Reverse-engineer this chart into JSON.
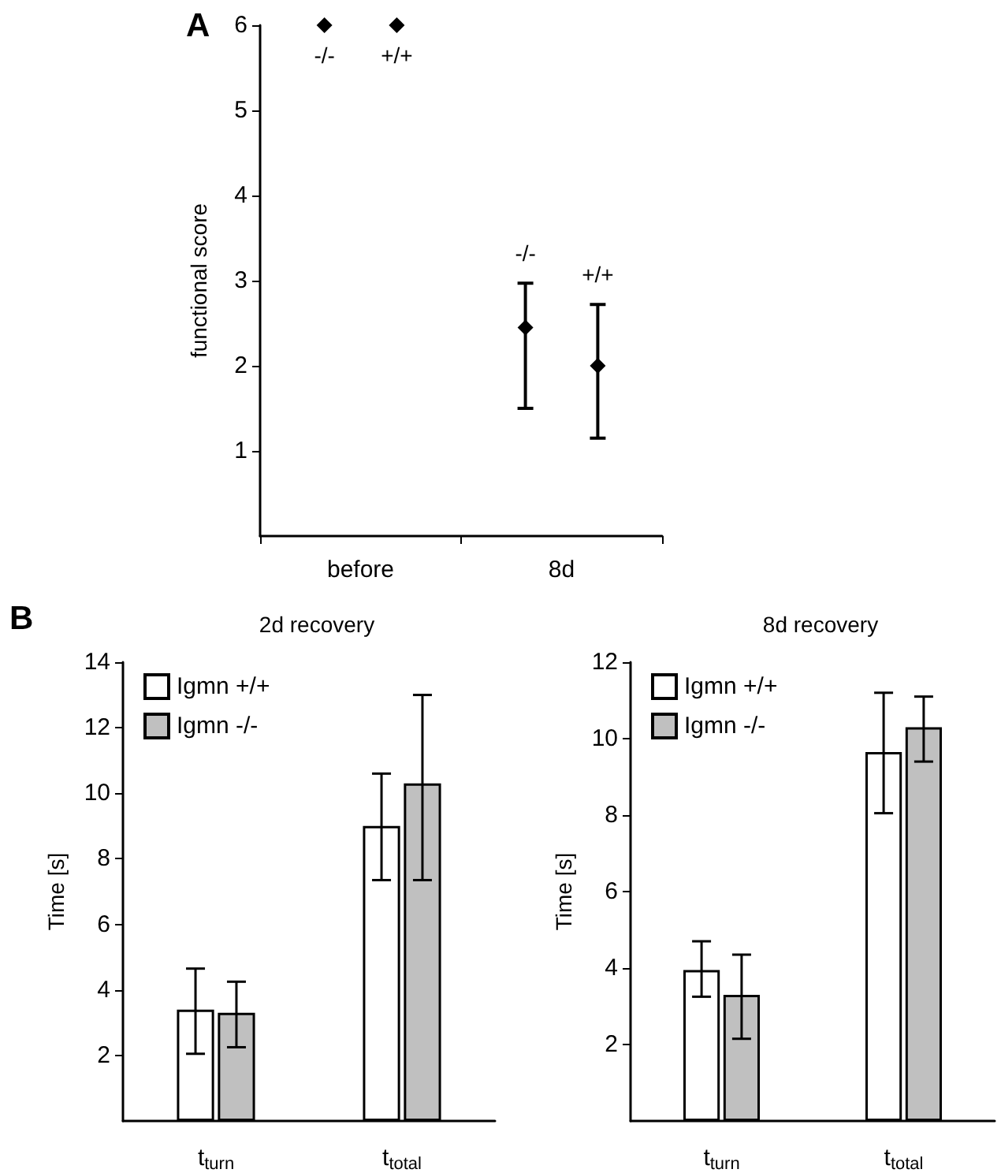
{
  "chart_data": [
    {
      "type": "scatter",
      "ylabel": "functional score",
      "categories": [
        "before",
        "8d"
      ],
      "marker": "diamond",
      "ylim": [
        0,
        6
      ],
      "yticks": [
        1,
        2,
        3,
        4,
        5,
        6
      ],
      "annotations": [
        "A"
      ],
      "series": [
        {
          "name": "-/-",
          "color": "#000000",
          "values": [
            6,
            2.45
          ],
          "errors": [
            null,
            [
              1.5,
              2.97
            ]
          ]
        },
        {
          "name": "+/+",
          "color": "#000000",
          "values": [
            6,
            2.0
          ],
          "errors": [
            null,
            [
              1.15,
              2.72
            ]
          ]
        }
      ]
    },
    {
      "type": "bar",
      "title": "2d recovery",
      "ylabel": "Time [s]",
      "categories": [
        "t$_{turn}$",
        "t$_{total}$"
      ],
      "ylim": [
        0,
        14
      ],
      "yticks": [
        2,
        4,
        6,
        8,
        10,
        12,
        14
      ],
      "legend": "top left",
      "annotations": [
        "B"
      ],
      "series": [
        {
          "name": "Igmn +/+",
          "color": "#ffffff",
          "values": [
            3.4,
            9.0
          ],
          "errors": [
            [
              2.05,
              4.65
            ],
            [
              7.35,
              10.6
            ]
          ]
        },
        {
          "name": "Igmn -/-",
          "color": "#c0c0c0",
          "values": [
            3.3,
            10.3
          ],
          "errors": [
            [
              2.25,
              4.25
            ],
            [
              7.35,
              13.0
            ]
          ]
        }
      ]
    },
    {
      "type": "bar",
      "title": "8d recovery",
      "ylabel": "Time [s]",
      "categories": [
        "t$_{turn}$",
        "t$_{total}$"
      ],
      "ylim": [
        0,
        12
      ],
      "yticks": [
        2,
        4,
        6,
        8,
        10,
        12
      ],
      "legend": "top left",
      "series": [
        {
          "name": "Igmn +/+",
          "color": "#ffffff",
          "values": [
            3.95,
            9.65
          ],
          "errors": [
            [
              3.25,
              4.7
            ],
            [
              8.05,
              11.2
            ]
          ]
        },
        {
          "name": "Igmn -/-",
          "color": "#c0c0c0",
          "values": [
            3.3,
            10.3
          ],
          "errors": [
            [
              2.15,
              4.35
            ],
            [
              9.4,
              11.1
            ]
          ]
        }
      ]
    }
  ]
}
